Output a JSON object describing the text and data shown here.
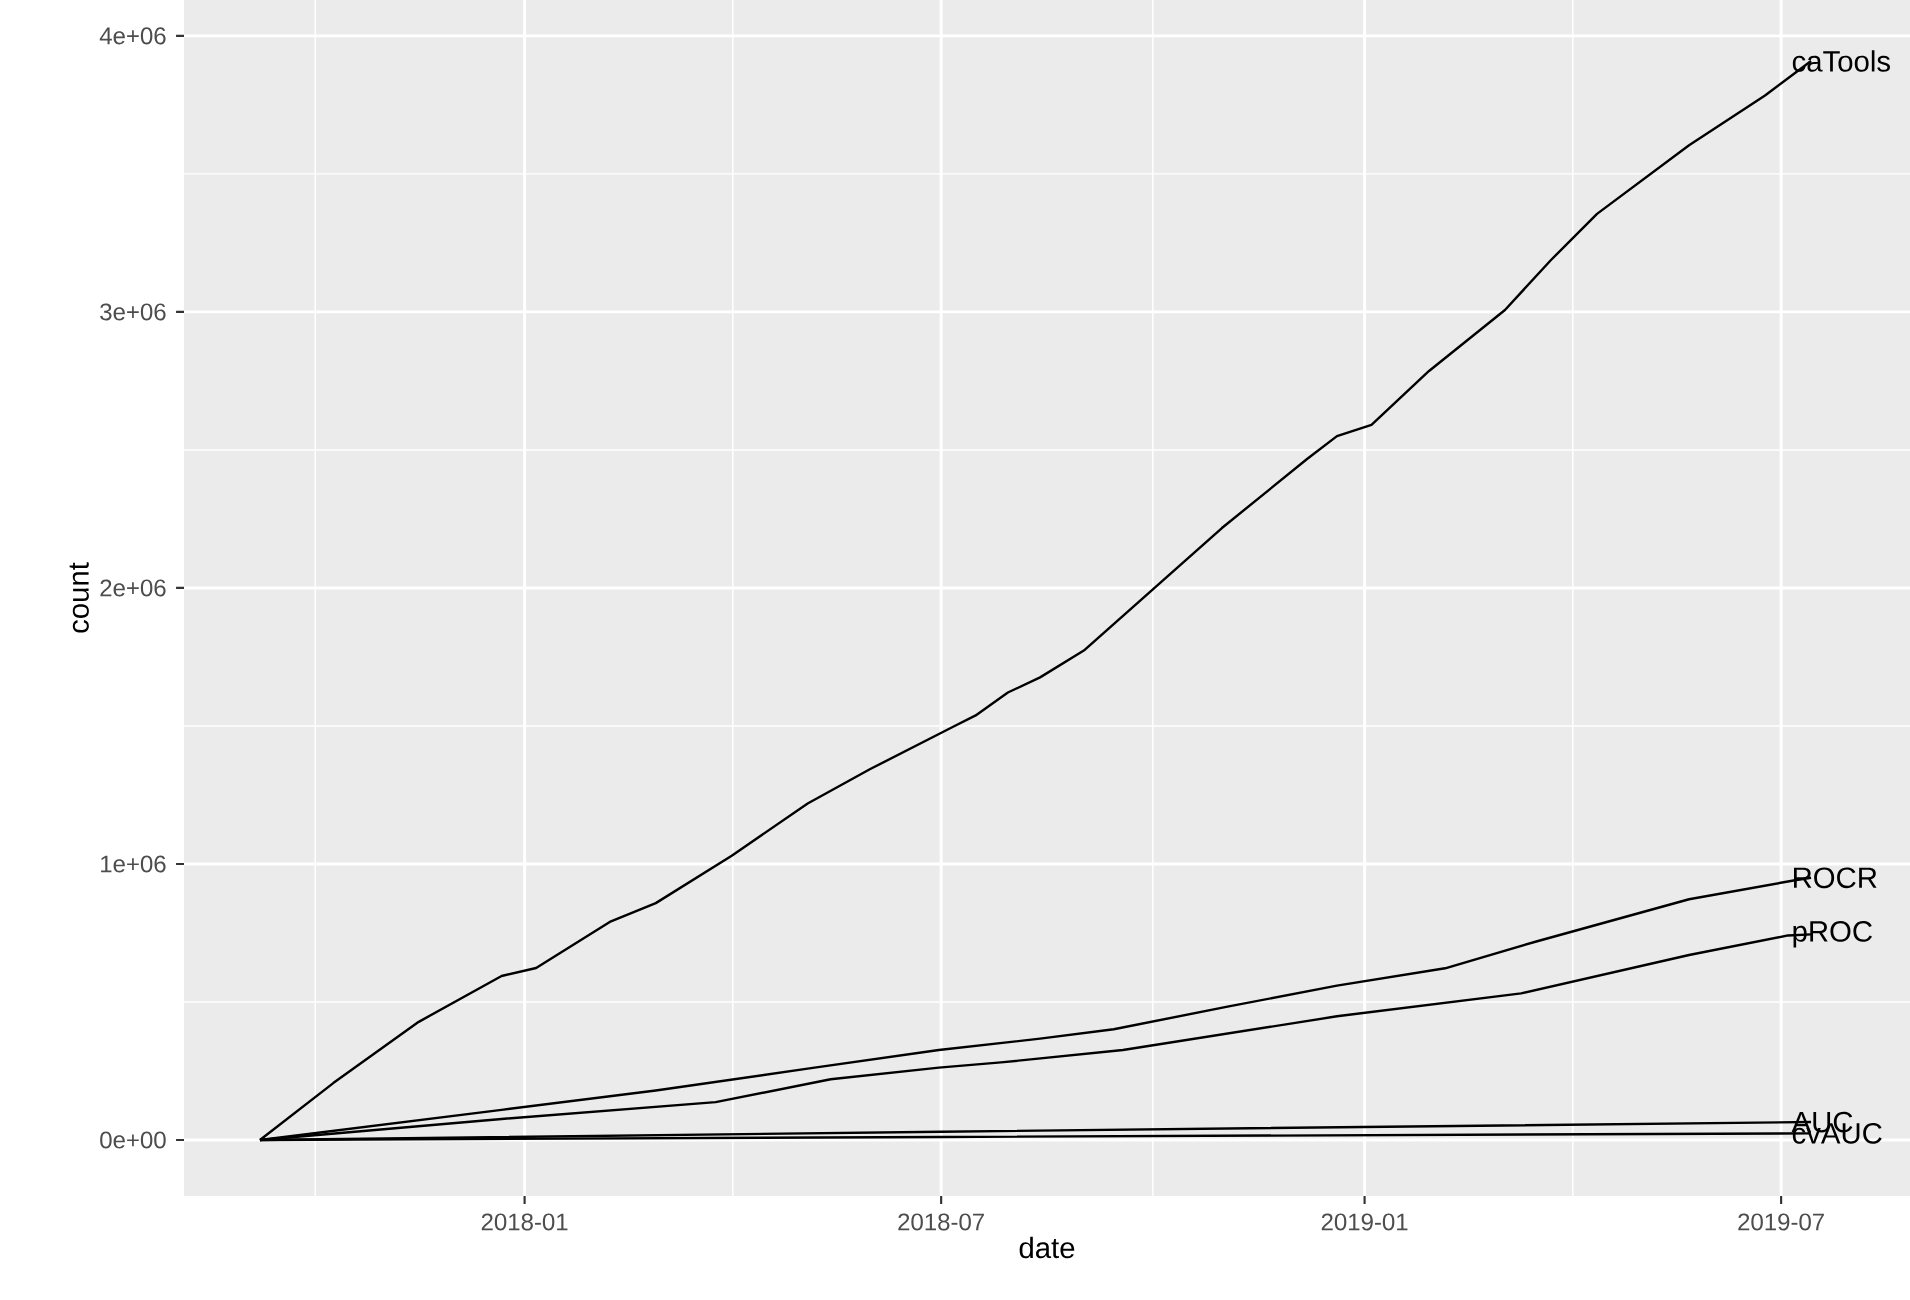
{
  "chart_data": {
    "type": "line",
    "xlabel": "date",
    "ylabel": "count",
    "grid": true,
    "legend": false,
    "xlim": [
      "2017-08-06",
      "2019-08-26"
    ],
    "ylim": [
      -203000,
      4130000
    ],
    "xticks": [
      {
        "value": "2018-01-01",
        "label": "2018-01"
      },
      {
        "value": "2018-07-01",
        "label": "2018-07"
      },
      {
        "value": "2019-01-01",
        "label": "2019-01"
      },
      {
        "value": "2019-07-01",
        "label": "2019-07"
      }
    ],
    "yticks": [
      {
        "value": 0,
        "label": "0e+00"
      },
      {
        "value": 1000000,
        "label": "1e+06"
      },
      {
        "value": 2000000,
        "label": "2e+06"
      },
      {
        "value": 3000000,
        "label": "3e+06"
      },
      {
        "value": 4000000,
        "label": "4e+06"
      }
    ],
    "series": [
      {
        "name": "caTools",
        "color": "#000000",
        "x": [
          "2017-09-08",
          "2017-10-10",
          "2017-11-16",
          "2017-12-22",
          "2018-01-06",
          "2018-02-07",
          "2018-02-27",
          "2018-04-01",
          "2018-05-04",
          "2018-05-31",
          "2018-07-06",
          "2018-07-16",
          "2018-07-30",
          "2018-08-13",
          "2018-09-01",
          "2018-10-01",
          "2018-10-31",
          "2018-12-07",
          "2018-12-20",
          "2019-01-04",
          "2019-01-29",
          "2019-03-03",
          "2019-03-23",
          "2019-04-12",
          "2019-05-22",
          "2019-06-24",
          "2019-07-14"
        ],
        "values": [
          0,
          207000,
          428000,
          594000,
          623000,
          790000,
          858000,
          1030000,
          1219000,
          1343000,
          1496000,
          1538000,
          1621000,
          1676000,
          1773000,
          1995000,
          2217000,
          2467000,
          2550000,
          2591000,
          2786000,
          3007000,
          3188000,
          3355000,
          3604000,
          3784000,
          3909000
        ]
      },
      {
        "name": "ROCR",
        "color": "#000000",
        "x": [
          "2017-09-08",
          "2017-12-22",
          "2018-02-27",
          "2018-05-07",
          "2018-06-30",
          "2018-08-13",
          "2018-09-14",
          "2018-11-03",
          "2018-12-20",
          "2019-02-05",
          "2019-03-17",
          "2019-05-22",
          "2019-07-07",
          "2019-07-14"
        ],
        "values": [
          0,
          109000,
          179000,
          262000,
          326000,
          367000,
          401000,
          484000,
          559000,
          622000,
          720000,
          872000,
          941000,
          950000
        ]
      },
      {
        "name": "pROC",
        "color": "#000000",
        "x": [
          "2017-09-08",
          "2017-12-22",
          "2018-03-25",
          "2018-05-14",
          "2018-06-30",
          "2018-07-27",
          "2018-09-18",
          "2018-12-20",
          "2019-03-10",
          "2019-05-22",
          "2019-07-04",
          "2019-07-14"
        ],
        "values": [
          0,
          76000,
          137000,
          220000,
          262000,
          281000,
          326000,
          448000,
          531000,
          670000,
          741000,
          745000
        ]
      },
      {
        "name": "AUC",
        "color": "#000000",
        "x": [
          "2017-09-08",
          "2018-07-01",
          "2019-07-14"
        ],
        "values": [
          0,
          30000,
          65000
        ]
      },
      {
        "name": "cvAUC",
        "color": "#000000",
        "x": [
          "2017-09-08",
          "2018-07-01",
          "2019-07-14"
        ],
        "values": [
          0,
          11000,
          24000
        ]
      }
    ]
  }
}
